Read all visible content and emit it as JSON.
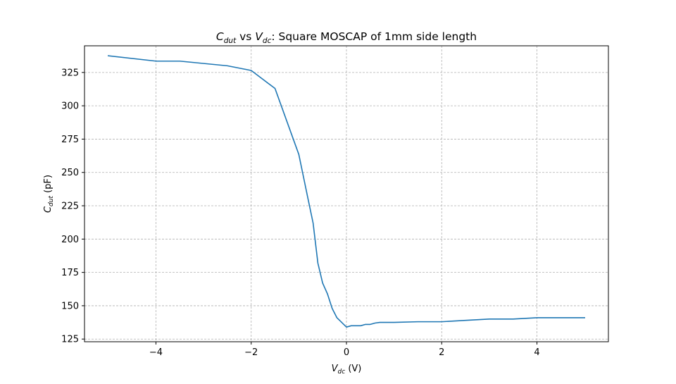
{
  "chart_data": {
    "type": "line",
    "title": {
      "sym1": "C",
      "sub1": "dut",
      "mid": " vs ",
      "sym2": "V",
      "sub2": "dc",
      "rest": ": Square MOSCAP of 1mm side length"
    },
    "xlabel": {
      "sym": "V",
      "sub": "dc",
      "rest": " (V)"
    },
    "ylabel": {
      "sym": "C",
      "sub": "dut",
      "rest": " (pF)"
    },
    "xlim": [
      -5.5,
      5.5
    ],
    "ylim": [
      123,
      345
    ],
    "xticks": [
      -4,
      -2,
      0,
      2,
      4
    ],
    "xtick_labels": [
      "−4",
      "−2",
      "0",
      "2",
      "4"
    ],
    "yticks": [
      125,
      150,
      175,
      200,
      225,
      250,
      275,
      300,
      325
    ],
    "ytick_labels": [
      "125",
      "150",
      "175",
      "200",
      "225",
      "250",
      "275",
      "300",
      "325"
    ],
    "grid": true,
    "series": [
      {
        "color": "#1f77b4",
        "x": [
          -5,
          -4,
          -3.5,
          -2.5,
          -2,
          -1.5,
          -1,
          -0.8,
          -0.7,
          -0.6,
          -0.5,
          -0.4,
          -0.3,
          -0.2,
          0,
          0.1,
          0.2,
          0.3,
          0.4,
          0.5,
          0.6,
          0.7,
          1,
          1.5,
          2,
          2.5,
          3,
          3.5,
          4,
          4.5,
          5
        ],
        "y": [
          337.5,
          333.5,
          333.5,
          330,
          326.5,
          313,
          263.5,
          229,
          212,
          182,
          167,
          159,
          148,
          141,
          134,
          135,
          135,
          135,
          136,
          136,
          137,
          137.5,
          137.5,
          138,
          138,
          139,
          140,
          140,
          141,
          141,
          141
        ]
      }
    ]
  }
}
